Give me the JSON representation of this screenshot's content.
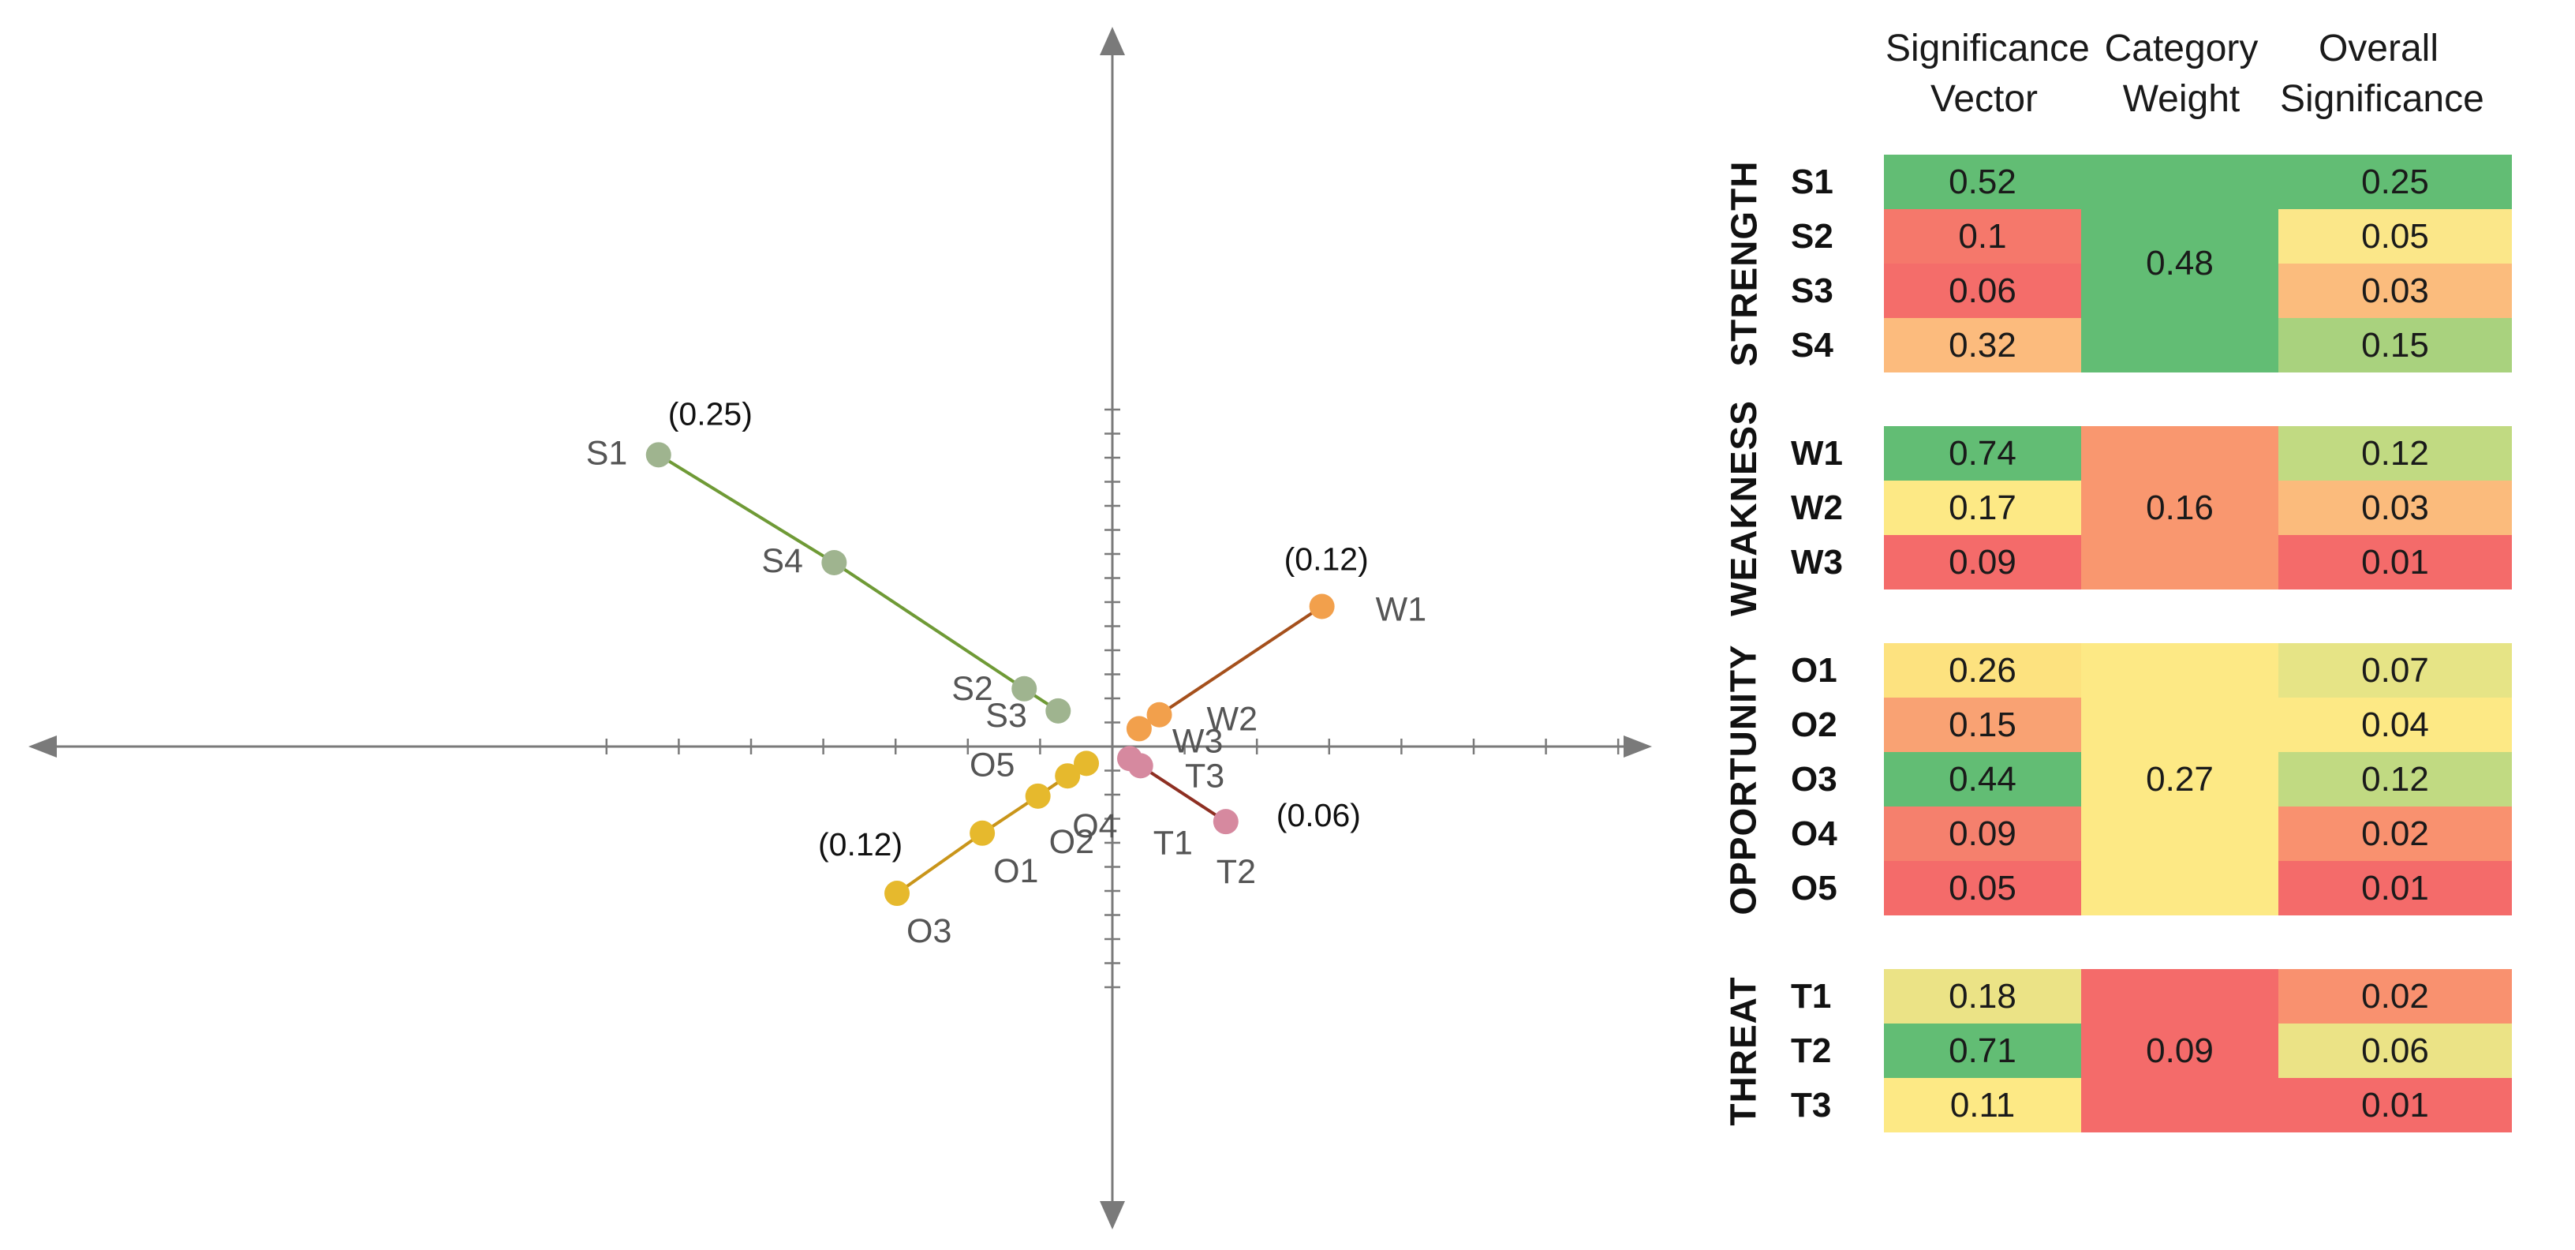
{
  "chart_data": {
    "type": "scatter",
    "title": "",
    "xlabel": "",
    "ylabel": "",
    "xlim": [
      -7.5,
      7.5
    ],
    "ylim": [
      -6.5,
      6.5
    ],
    "grid": false,
    "series": [
      {
        "group": "strength",
        "color": "#9fb48f",
        "line_color": "#6f9a36",
        "points": [
          {
            "label": "S1",
            "x": -6.28,
            "y": 6.06
          },
          {
            "label": "S4",
            "x": -3.85,
            "y": 3.82
          },
          {
            "label": "S2",
            "x": -1.22,
            "y": 1.2
          },
          {
            "label": "S3",
            "x": -0.75,
            "y": 0.74
          }
        ],
        "annotation": {
          "text": "(0.25)",
          "at": "S1"
        }
      },
      {
        "group": "weakness",
        "color": "#f2a04c",
        "line_color": "#a5501c",
        "points": [
          {
            "label": "W1",
            "x": 2.9,
            "y": 2.91
          },
          {
            "label": "W2",
            "x": 0.65,
            "y": 0.66
          },
          {
            "label": "W3",
            "x": 0.37,
            "y": 0.37
          }
        ],
        "annotation": {
          "text": "(0.12)",
          "at": "W1"
        }
      },
      {
        "group": "opportunity",
        "color": "#e6b92d",
        "line_color": "#c9951a",
        "points": [
          {
            "label": "O3",
            "x": -2.98,
            "y": -3.05
          },
          {
            "label": "O1",
            "x": -1.8,
            "y": -1.8
          },
          {
            "label": "O2",
            "x": -1.03,
            "y": -1.03
          },
          {
            "label": "O4",
            "x": -0.62,
            "y": -0.61
          },
          {
            "label": "O5",
            "x": -0.36,
            "y": -0.35
          }
        ],
        "annotation": {
          "text": "(0.12)",
          "at": "O3"
        }
      },
      {
        "group": "threat",
        "color": "#d6899f",
        "line_color": "#8e2f22",
        "points": [
          {
            "label": "T3",
            "x": 0.24,
            "y": -0.25
          },
          {
            "label": "T1",
            "x": 0.39,
            "y": -0.4
          },
          {
            "label": "T2",
            "x": 1.57,
            "y": -1.56
          }
        ],
        "annotation": {
          "text": "(0.06)",
          "at": "T2"
        }
      }
    ]
  },
  "table": {
    "headers": [
      {
        "line1": "Significance",
        "line2": "Vector"
      },
      {
        "line1": "Category",
        "line2": "Weight"
      },
      {
        "line1": "Overall",
        "line2": "Significance"
      }
    ],
    "groups": [
      {
        "name": "STRENGTH",
        "weight": "0.48",
        "weight_color": "#62bd74",
        "rows": [
          {
            "label": "S1",
            "vector": "0.52",
            "vector_color": "#62bd74",
            "overall": "0.25",
            "overall_color": "#62bd74"
          },
          {
            "label": "S2",
            "vector": "0.1",
            "vector_color": "#f5786b",
            "overall": "0.05",
            "overall_color": "#fbe789"
          },
          {
            "label": "S3",
            "vector": "0.06",
            "vector_color": "#f46d6a",
            "overall": "0.03",
            "overall_color": "#fbbc7d"
          },
          {
            "label": "S4",
            "vector": "0.32",
            "vector_color": "#fcbb7d",
            "overall": "0.15",
            "overall_color": "#a9d27e"
          }
        ]
      },
      {
        "name": "WEAKNESS",
        "weight": "0.16",
        "weight_color": "#f9976f",
        "rows": [
          {
            "label": "W1",
            "vector": "0.74",
            "vector_color": "#62bd74",
            "overall": "0.12",
            "overall_color": "#c1da82"
          },
          {
            "label": "W2",
            "vector": "0.17",
            "vector_color": "#fde985",
            "overall": "0.03",
            "overall_color": "#fbbb7c"
          },
          {
            "label": "W3",
            "vector": "0.09",
            "vector_color": "#f46b6a",
            "overall": "0.01",
            "overall_color": "#f46b6a"
          }
        ]
      },
      {
        "name": "OPPORTUNITY",
        "weight": "0.27",
        "weight_color": "#fde985",
        "rows": [
          {
            "label": "O1",
            "vector": "0.26",
            "vector_color": "#fde27f",
            "overall": "0.07",
            "overall_color": "#e6e486"
          },
          {
            "label": "O2",
            "vector": "0.15",
            "vector_color": "#f9a273",
            "overall": "0.04",
            "overall_color": "#fde985"
          },
          {
            "label": "O3",
            "vector": "0.44",
            "vector_color": "#62bd74",
            "overall": "0.12",
            "overall_color": "#c1da82"
          },
          {
            "label": "O4",
            "vector": "0.09",
            "vector_color": "#f5806d",
            "overall": "0.02",
            "overall_color": "#f9916f"
          },
          {
            "label": "O5",
            "vector": "0.05",
            "vector_color": "#f46b6a",
            "overall": "0.01",
            "overall_color": "#f46b6a"
          }
        ]
      },
      {
        "name": "THREAT",
        "weight": "0.09",
        "weight_color": "#f46b6a",
        "rows": [
          {
            "label": "T1",
            "vector": "0.18",
            "vector_color": "#ebe386",
            "overall": "0.02",
            "overall_color": "#f9916f"
          },
          {
            "label": "T2",
            "vector": "0.71",
            "vector_color": "#62bd74",
            "overall": "0.06",
            "overall_color": "#ebe386"
          },
          {
            "label": "T3",
            "vector": "0.11",
            "vector_color": "#fde985",
            "overall": "0.01",
            "overall_color": "#f46b6a"
          }
        ]
      }
    ]
  }
}
